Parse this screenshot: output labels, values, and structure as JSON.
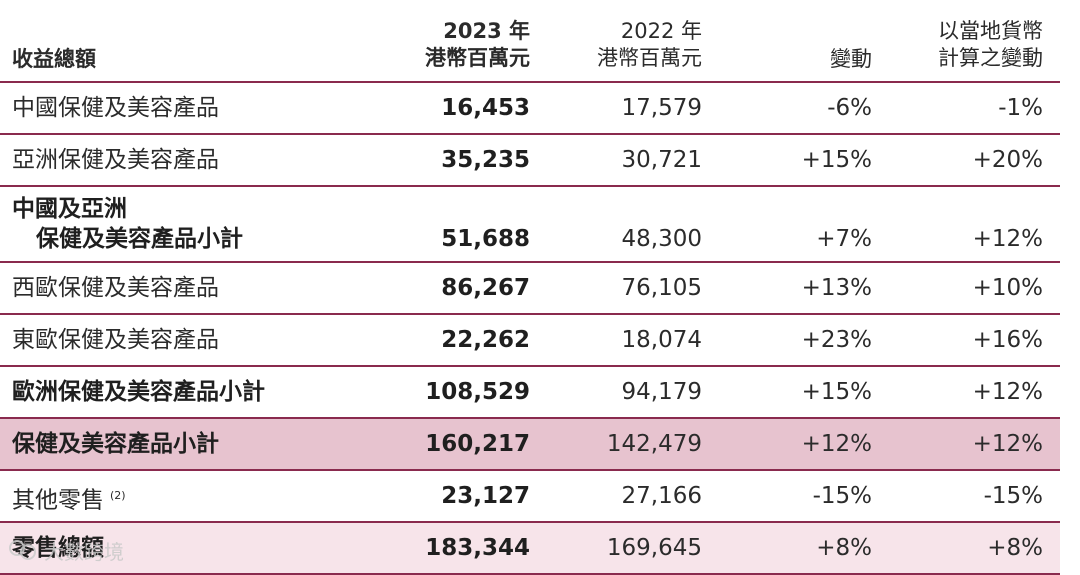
{
  "header": {
    "label": "收益總額",
    "col1": [
      "2023 年",
      "港幣百萬元"
    ],
    "col2": [
      "2022 年",
      "港幣百萬元"
    ],
    "col3": "變動",
    "col4": [
      "以當地貨幣",
      "計算之變動"
    ]
  },
  "rows": [
    {
      "label": "中國保健及美容產品",
      "v2023": "16,453",
      "v2022": "17,579",
      "change": "-6%",
      "local": "-1%"
    },
    {
      "label": "亞洲保健及美容產品",
      "v2023": "35,235",
      "v2022": "30,721",
      "change": "+15%",
      "local": "+20%"
    },
    {
      "label1": "中國及亞洲",
      "label2": "保健及美容產品小計",
      "v2023": "51,688",
      "v2022": "48,300",
      "change": "+7%",
      "local": "+12%"
    },
    {
      "label": "西歐保健及美容產品",
      "v2023": "86,267",
      "v2022": "76,105",
      "change": "+13%",
      "local": "+10%"
    },
    {
      "label": "東歐保健及美容產品",
      "v2023": "22,262",
      "v2022": "18,074",
      "change": "+23%",
      "local": "+16%"
    },
    {
      "label": "歐洲保健及美容產品小計",
      "v2023": "108,529",
      "v2022": "94,179",
      "change": "+15%",
      "local": "+12%"
    },
    {
      "label": "保健及美容產品小計",
      "v2023": "160,217",
      "v2022": "142,479",
      "change": "+12%",
      "local": "+12%"
    },
    {
      "label": "其他零售",
      "note": "(2)",
      "v2023": "23,127",
      "v2022": "27,166",
      "change": "-15%",
      "local": "-15%"
    },
    {
      "label": "零售總額",
      "v2023": "183,344",
      "v2022": "169,645",
      "change": "+8%",
      "local": "+8%"
    }
  ],
  "watermark": "大數跨境",
  "colors": {
    "rule": "#8a2a4e",
    "highlight": "#e7c3cf",
    "total_bg": "#f7e4ea"
  }
}
